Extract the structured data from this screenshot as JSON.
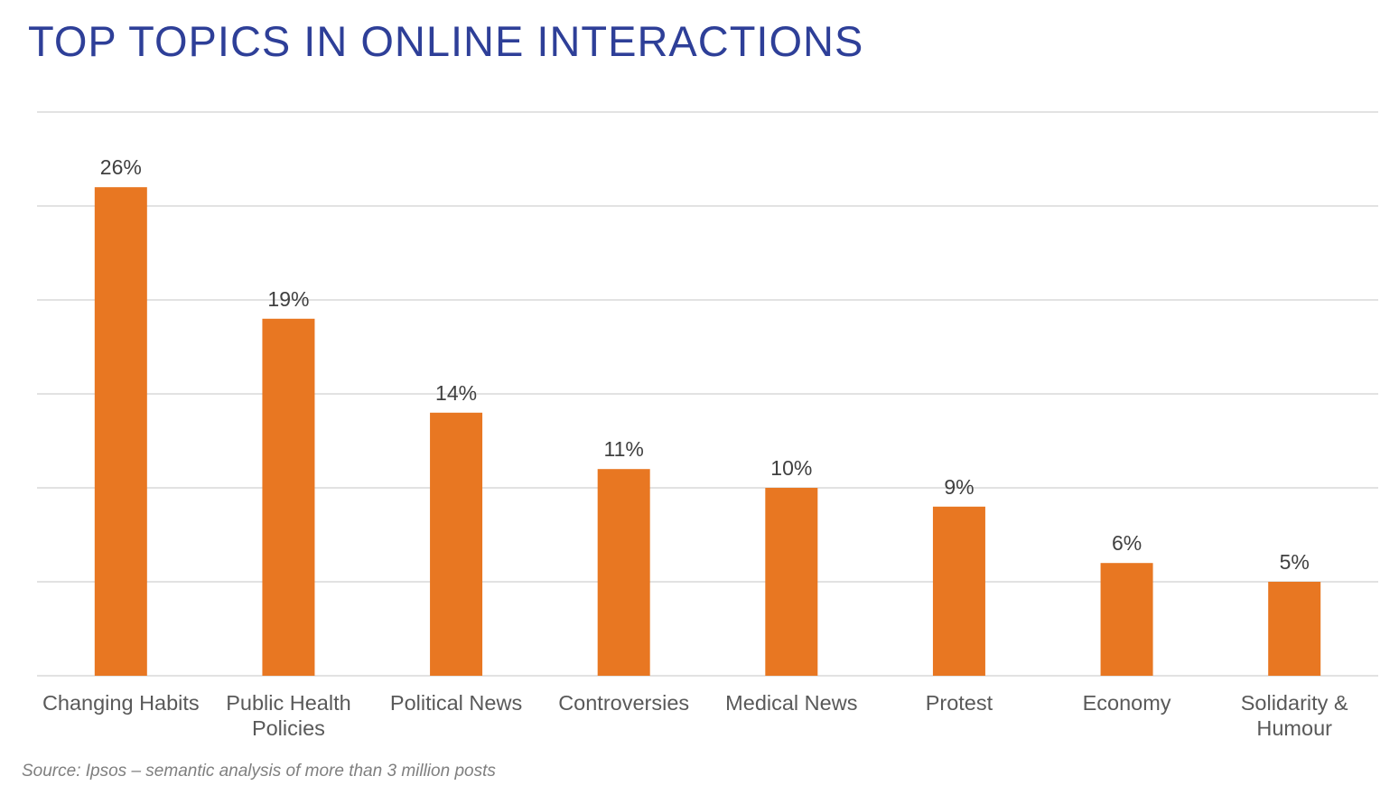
{
  "chart_data": {
    "type": "bar",
    "title": "TOP TOPICS IN ONLINE INTERACTIONS",
    "categories": [
      "Changing Habits",
      "Public Health Policies",
      "Political News",
      "Controversies",
      "Medical News",
      "Protest",
      "Economy",
      "Solidarity & Humour"
    ],
    "values": [
      26,
      19,
      14,
      11,
      10,
      9,
      6,
      5
    ],
    "value_labels": [
      "26%",
      "19%",
      "14%",
      "11%",
      "10%",
      "9%",
      "6%",
      "5%"
    ],
    "color": "#e87722",
    "ylim": [
      0,
      30
    ],
    "yticks": [
      0,
      5,
      10,
      15,
      20,
      25,
      30
    ],
    "grid": true,
    "source": "Source: Ipsos – semantic analysis of more than 3 million posts"
  }
}
